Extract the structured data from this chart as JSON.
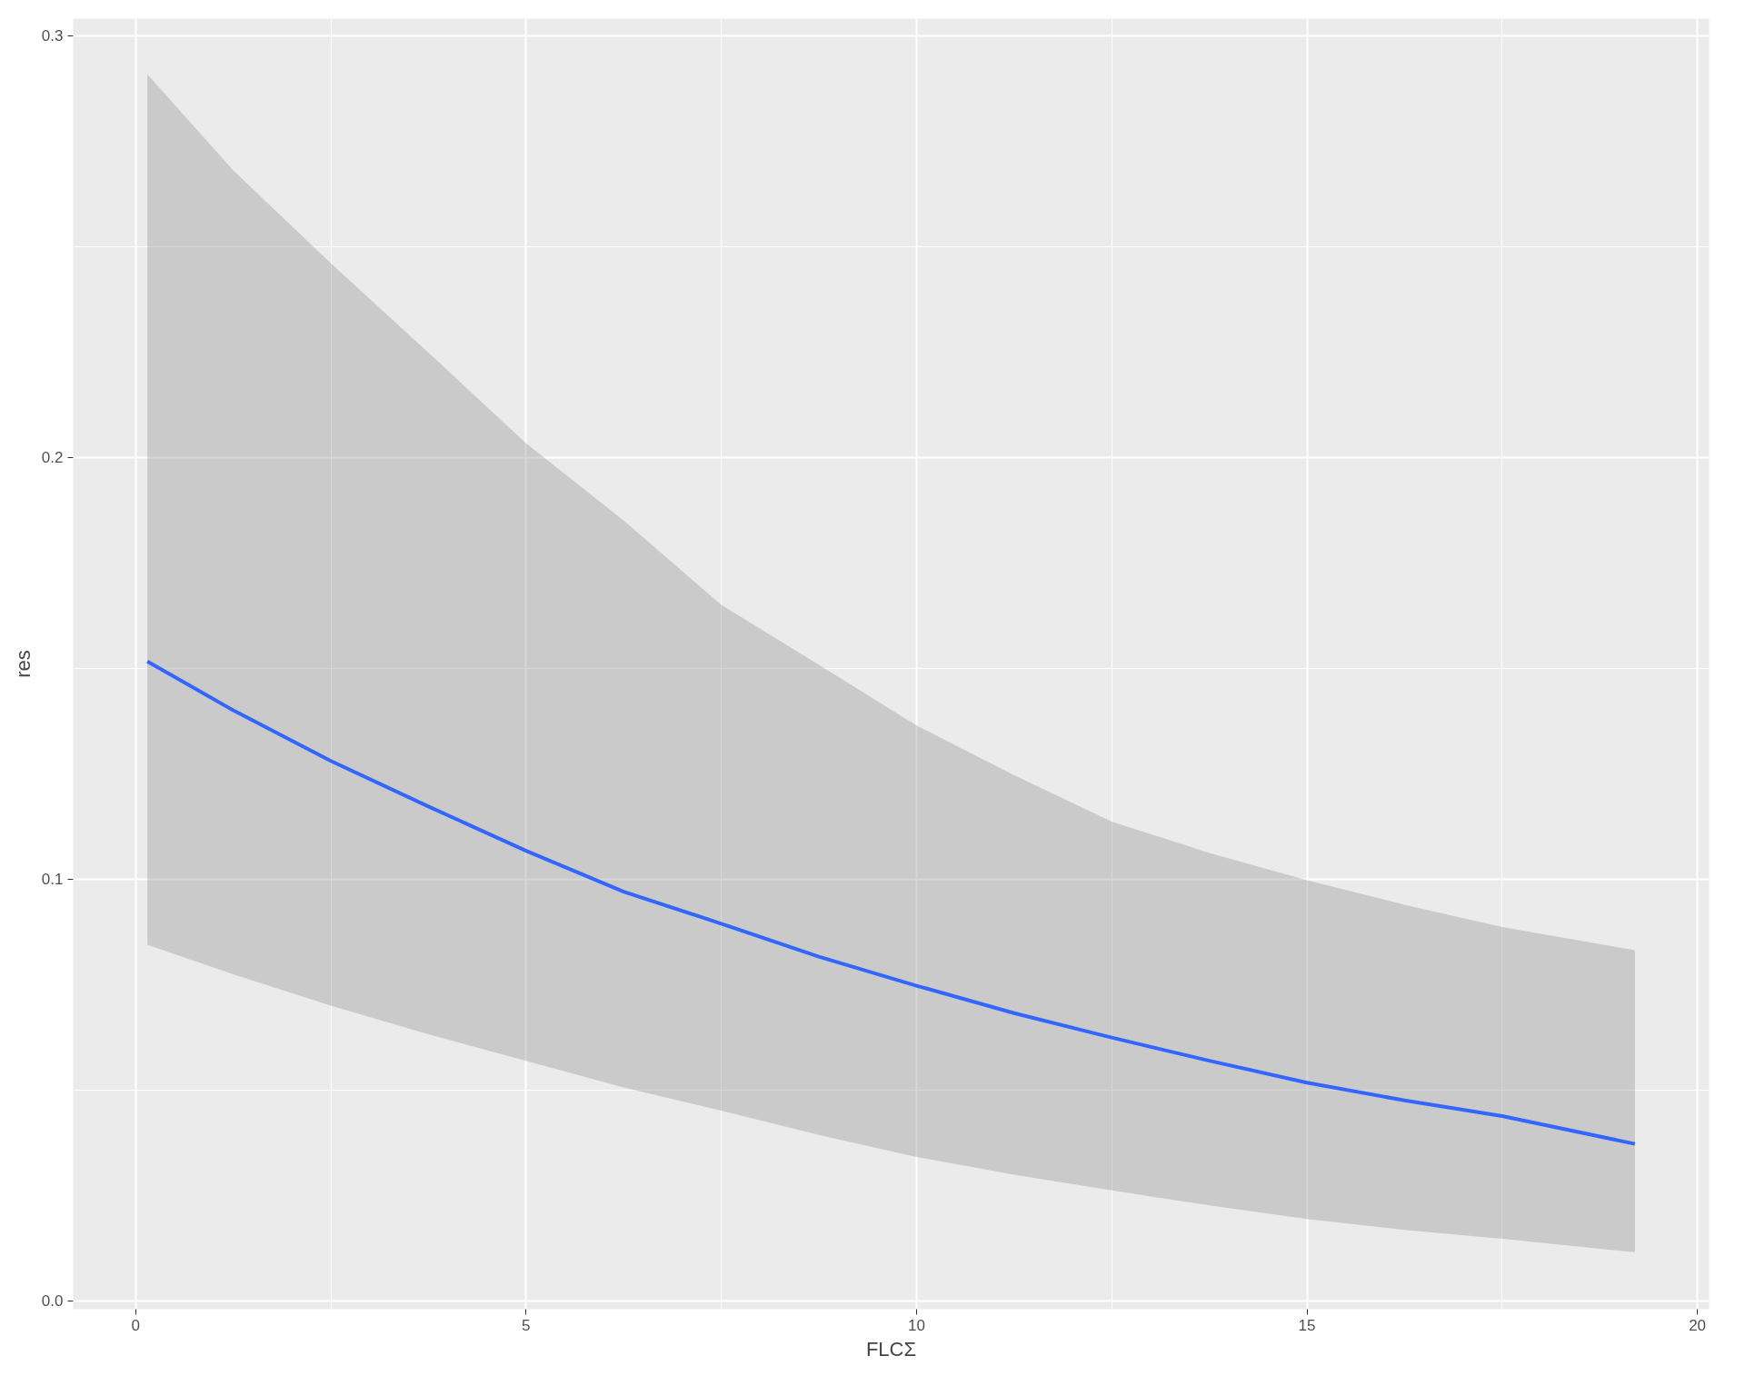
{
  "chart_data": {
    "type": "line",
    "xlabel": "FLCΣ",
    "ylabel": "res",
    "x": [
      0.15,
      1.25,
      2.5,
      3.75,
      5,
      6.25,
      7.5,
      8.75,
      10,
      11.25,
      12.5,
      13.75,
      15,
      16.25,
      17.5,
      19.2
    ],
    "series": [
      {
        "color": "#3366ff",
        "values": [
          0.1516,
          0.14,
          0.128,
          0.1172,
          0.1067,
          0.097,
          0.0894,
          0.0816,
          0.0747,
          0.0682,
          0.0624,
          0.0569,
          0.0517,
          0.0475,
          0.0438,
          0.0372
        ],
        "lower": [
          0.0844,
          0.0774,
          0.07,
          0.0632,
          0.0569,
          0.0506,
          0.0451,
          0.0393,
          0.0341,
          0.0299,
          0.0262,
          0.0226,
          0.0194,
          0.0168,
          0.0147,
          0.0115
        ],
        "upper": [
          0.2908,
          0.268,
          0.246,
          0.2248,
          0.2033,
          0.185,
          0.165,
          0.1508,
          0.1364,
          0.1246,
          0.1136,
          0.1062,
          0.0997,
          0.0939,
          0.0886,
          0.0831
        ]
      }
    ],
    "xlim": [
      -0.8,
      20.15
    ],
    "ylim": [
      -0.002,
      0.304
    ],
    "xticks": [
      0,
      5,
      10,
      15,
      20
    ],
    "yticks": [
      {
        "value": 0,
        "label": "0.0"
      },
      {
        "value": 0.1,
        "label": "0.1"
      },
      {
        "value": 0.2,
        "label": "0.2"
      },
      {
        "value": 0.3,
        "label": "0.3"
      }
    ],
    "grid": true,
    "line_style": "solid"
  }
}
